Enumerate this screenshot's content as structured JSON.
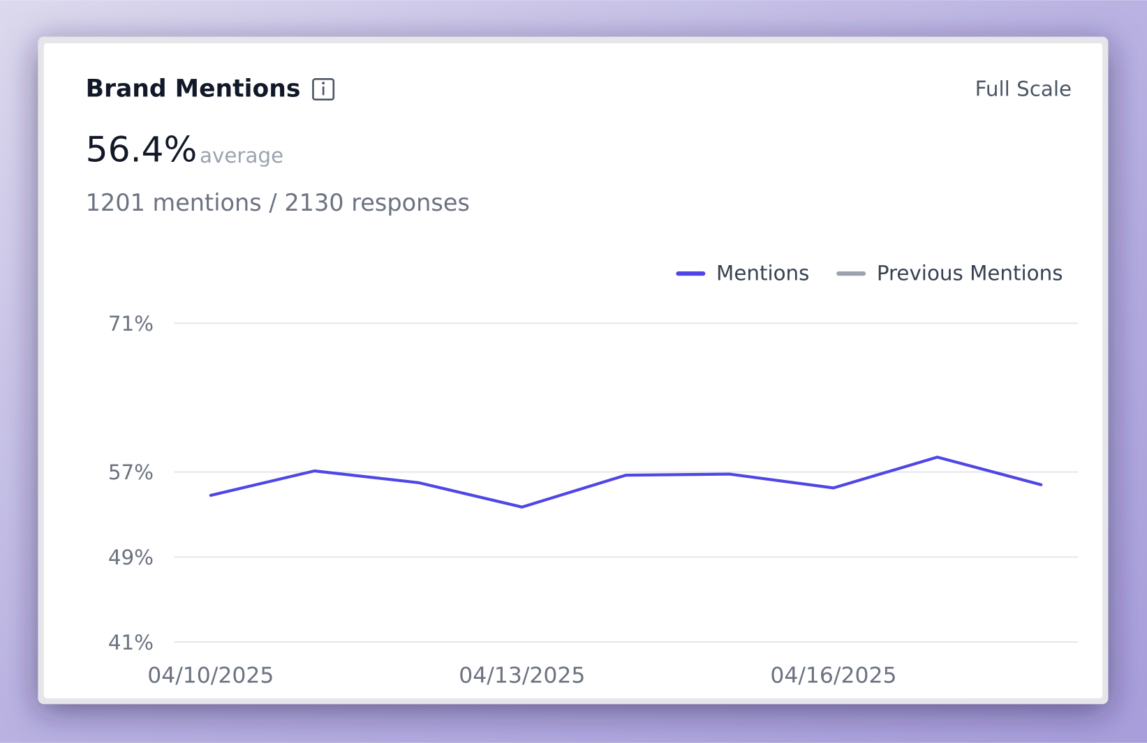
{
  "header": {
    "title": "Brand Mentions",
    "button": "Full Scale",
    "metric": "56.4%",
    "metric_caption": "average",
    "detail": "1201 mentions / 2130 responses"
  },
  "chart_data": {
    "type": "line",
    "categories": [
      "04/10/2025",
      null,
      null,
      "04/13/2025",
      null,
      null,
      "04/16/2025",
      null,
      null
    ],
    "series": [
      {
        "name": "Mentions",
        "color": "#4f46e5",
        "values": [
          54.8,
          57.1,
          56.0,
          53.7,
          56.7,
          56.8,
          55.5,
          58.4,
          55.8
        ]
      },
      {
        "name": "Previous Mentions",
        "color": "#9ca3af",
        "values": [
          null,
          null,
          null,
          null,
          null,
          null,
          null,
          null,
          null
        ]
      }
    ],
    "ylim": [
      41,
      71
    ],
    "yticks": [
      {
        "value": 41,
        "label": "41%"
      },
      {
        "value": 49,
        "label": "49%"
      },
      {
        "value": 57,
        "label": "57%"
      },
      {
        "value": 71,
        "label": "71%"
      }
    ],
    "grid": true,
    "legend": "top-right"
  }
}
